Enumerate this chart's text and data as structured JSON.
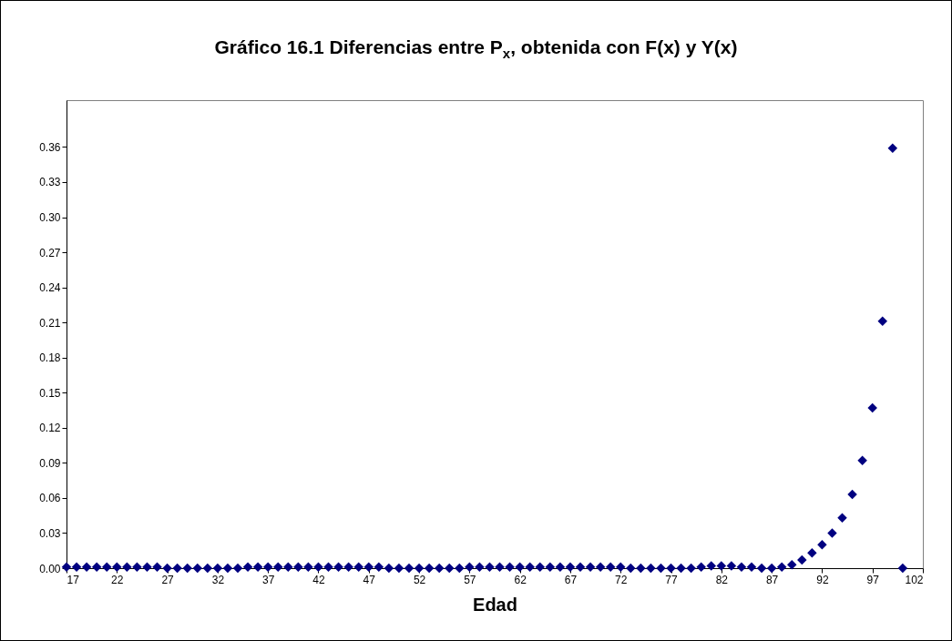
{
  "chart_data": {
    "type": "scatter",
    "title": "Gráfico 16.1 Diferencias entre P$_{x}$, obtenida con F(x) y Y(x)",
    "xlabel": "Edad",
    "x": [
      17,
      18,
      19,
      20,
      21,
      22,
      23,
      24,
      25,
      26,
      27,
      28,
      29,
      30,
      31,
      32,
      33,
      34,
      35,
      36,
      37,
      38,
      39,
      40,
      41,
      42,
      43,
      44,
      45,
      46,
      47,
      48,
      49,
      50,
      51,
      52,
      53,
      54,
      55,
      56,
      57,
      58,
      59,
      60,
      61,
      62,
      63,
      64,
      65,
      66,
      67,
      68,
      69,
      70,
      71,
      72,
      73,
      74,
      75,
      76,
      77,
      78,
      79,
      80,
      81,
      82,
      83,
      84,
      85,
      86,
      87,
      88,
      89,
      90,
      91,
      92,
      93,
      94,
      95,
      96,
      97,
      98,
      99,
      100
    ],
    "series": [
      {
        "color": "#000080",
        "values": [
          0.001,
          0.001,
          0.001,
          0.001,
          0.001,
          0.001,
          0.001,
          0.001,
          0.001,
          0.001,
          0,
          0,
          0,
          0,
          0,
          0,
          0,
          0,
          0.001,
          0.001,
          0.001,
          0.001,
          0.001,
          0.001,
          0.001,
          0.001,
          0.001,
          0.001,
          0.001,
          0.001,
          0.001,
          0.001,
          0,
          0,
          0,
          0,
          0,
          0,
          0,
          0,
          0.001,
          0.001,
          0.001,
          0.001,
          0.001,
          0.001,
          0.001,
          0.001,
          0.001,
          0.001,
          0.001,
          0.001,
          0.001,
          0.001,
          0.001,
          0.001,
          0,
          0,
          0,
          0,
          0,
          0,
          0,
          0.001,
          0.002,
          0.002,
          0.002,
          0.001,
          0.001,
          0,
          0,
          0.001,
          0.003,
          0.007,
          0.013,
          0.02,
          0.03,
          0.043,
          0.063,
          0.092,
          0.137,
          0.211,
          0.359,
          0
        ]
      }
    ],
    "marker": "diamond",
    "xlim": [
      17,
      102
    ],
    "xticks": [
      17,
      22,
      27,
      32,
      37,
      42,
      47,
      52,
      57,
      62,
      67,
      72,
      77,
      82,
      87,
      92,
      97,
      102
    ],
    "ylim": [
      0,
      0.4
    ],
    "yticks": [
      {
        "value": 0,
        "label": "0.00"
      },
      {
        "value": 0.03,
        "label": "0.03"
      },
      {
        "value": 0.06,
        "label": "0.06"
      },
      {
        "value": 0.09,
        "label": "0.09"
      },
      {
        "value": 0.12,
        "label": "0.12"
      },
      {
        "value": 0.15,
        "label": "0.15"
      },
      {
        "value": 0.18,
        "label": "0.18"
      },
      {
        "value": 0.21,
        "label": "0.21"
      },
      {
        "value": 0.24,
        "label": "0.24"
      },
      {
        "value": 0.27,
        "label": "0.27"
      },
      {
        "value": 0.3,
        "label": "0.30"
      },
      {
        "value": 0.33,
        "label": "0.33"
      },
      {
        "value": 0.36,
        "label": "0.36"
      }
    ]
  }
}
